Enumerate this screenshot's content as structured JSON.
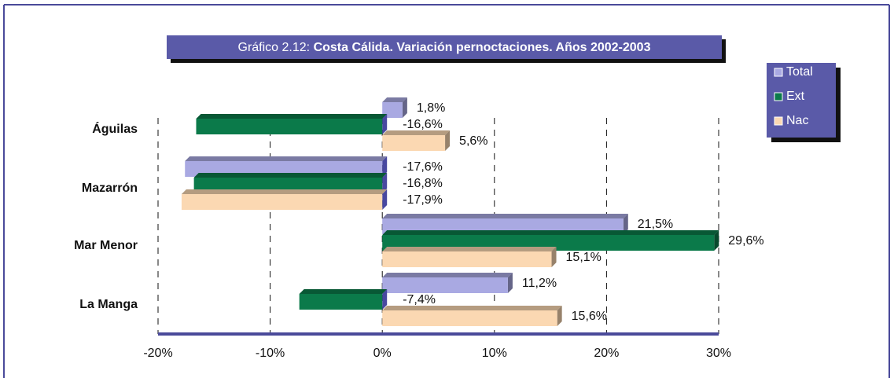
{
  "chart_data": {
    "type": "bar",
    "orientation": "horizontal",
    "title": [
      "Gráfico 2.12:",
      "Costa Cálida. Variación pernoctaciones. Años 2002-2003"
    ],
    "categories": [
      "Águilas",
      "Mazarrón",
      "Mar Menor",
      "La Manga"
    ],
    "series": [
      {
        "name": "Total",
        "color": "#a9a9e2",
        "values": [
          1.8,
          -17.6,
          21.5,
          11.2
        ],
        "value_labels": [
          "1,8%",
          "-17,6%",
          "21,5%",
          "11,2%"
        ]
      },
      {
        "name": "Ext",
        "color": "#0b7a4a",
        "values": [
          -16.6,
          -16.8,
          29.6,
          -7.4
        ],
        "value_labels": [
          "-16,6%",
          "-16,8%",
          "29,6%",
          "-7,4%"
        ]
      },
      {
        "name": "Nac",
        "color": "#fbd8b2",
        "values": [
          5.6,
          -17.9,
          15.1,
          15.6
        ],
        "value_labels": [
          "5,6%",
          "-17,9%",
          "15,1%",
          "15,6%"
        ]
      }
    ],
    "xlim": [
      -20,
      30
    ],
    "xticks": [
      {
        "value": -20,
        "label": "-20%"
      },
      {
        "value": -10,
        "label": "-10%"
      },
      {
        "value": 0,
        "label": "0%"
      },
      {
        "value": 10,
        "label": "10%"
      },
      {
        "value": 20,
        "label": "20%"
      },
      {
        "value": 30,
        "label": "30%"
      }
    ],
    "grid": true,
    "legend": "top-right"
  }
}
